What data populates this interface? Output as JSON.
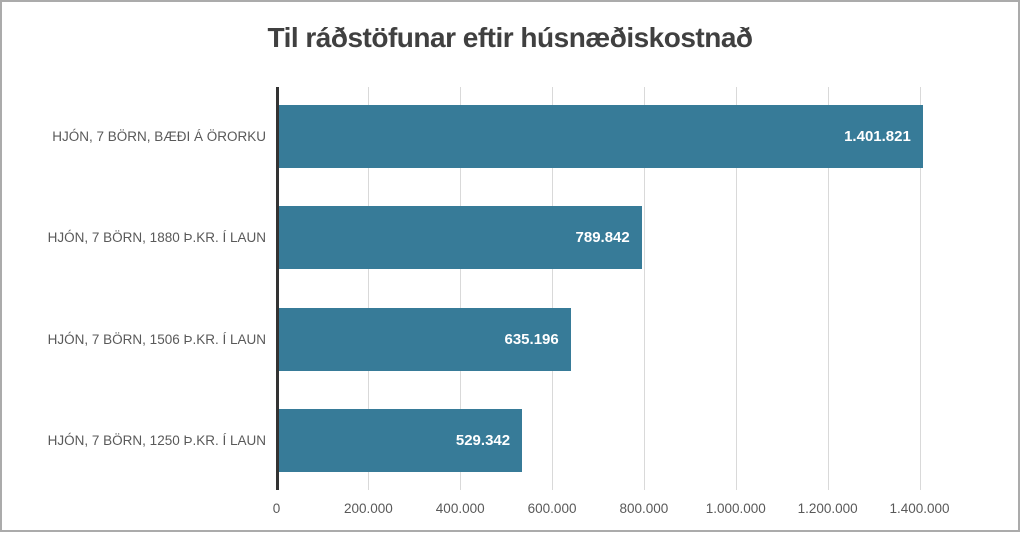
{
  "chart_data": {
    "type": "bar",
    "orientation": "horizontal",
    "title": "Til ráðstöfunar eftir húsnæðiskostnað",
    "categories": [
      "HJÓN, 7 BÖRN, BÆÐI Á ÖRORKU",
      "HJÓN, 7 BÖRN, 1880 Þ.KR. Í LAUN",
      "HJÓN, 7 BÖRN, 1506 Þ.KR. Í LAUN",
      "HJÓN, 7 BÖRN, 1250 Þ.KR. Í LAUN"
    ],
    "values": [
      1401821,
      789842,
      635196,
      529342
    ],
    "value_labels": [
      "1.401.821",
      "789.842",
      "635.196",
      "529.342"
    ],
    "xlabel": "",
    "ylabel": "",
    "xlim": [
      0,
      1400000
    ],
    "x_ticks": [
      {
        "value": 0,
        "label": "0"
      },
      {
        "value": 200000,
        "label": "200.000"
      },
      {
        "value": 400000,
        "label": "400.000"
      },
      {
        "value": 600000,
        "label": "600.000"
      },
      {
        "value": 800000,
        "label": "800.000"
      },
      {
        "value": 1000000,
        "label": "1.000.000"
      },
      {
        "value": 1200000,
        "label": "1.200.000"
      },
      {
        "value": 1400000,
        "label": "1.400.000"
      }
    ],
    "grid": true,
    "legend": false,
    "colors": {
      "bar": "#377B98",
      "grid": "#D9D9D9",
      "axis": "#333333",
      "title_text": "#404040",
      "label_text": "#595959",
      "value_text": "#FFFFFF",
      "border": "#ABABAB"
    }
  }
}
